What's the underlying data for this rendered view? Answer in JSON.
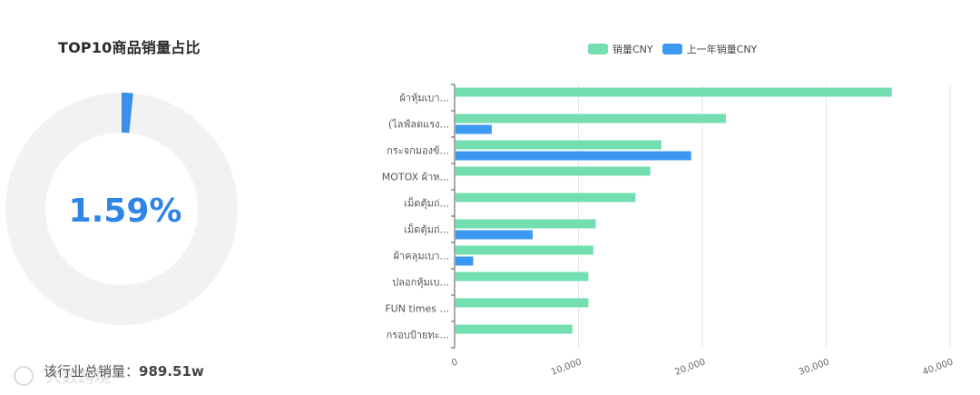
{
  "left_panel": {
    "title": "TOP10商品销量占比",
    "percent_label": "1.59%",
    "percent_value": 0.0159,
    "footer_label": "该行业总销量：",
    "footer_value": "989.51w"
  },
  "colors": {
    "series_current": "#73dfb0",
    "series_previous": "#3b99f2",
    "donut_track": "#f2f2f2",
    "donut_fill": "#3b8fea",
    "percent_text": "#2d85e6"
  },
  "chart_data": [
    {
      "type": "pie",
      "variant": "donut",
      "title": "TOP10商品销量占比",
      "values": [
        1.59,
        98.41
      ],
      "center_label": "1.59%"
    },
    {
      "type": "bar",
      "orientation": "horizontal",
      "categories": [
        "ผ้าหุ้มเบา...",
        "(ไลฟ์ลดแรง...",
        "กระจกมองข้...",
        "MOTOX ผ้าห...",
        "เม็ดตุ้มถ่...",
        "เม็ดตุ้มถ่...",
        "ผ้าคลุมเบา...",
        "ปลอกหุ้มเบ...",
        "FUN times ...",
        "กรอบป้ายทะ..."
      ],
      "series": [
        {
          "name": "销量CNY",
          "values": [
            35300,
            21900,
            16700,
            15800,
            14600,
            11400,
            11200,
            10800,
            10800,
            9500
          ]
        },
        {
          "name": "上一年销量CNY",
          "values": [
            0,
            3000,
            19100,
            0,
            0,
            6300,
            1500,
            0,
            0,
            0
          ]
        }
      ],
      "xlim": [
        0,
        40000
      ],
      "x_ticks": [
        "0",
        "10,000",
        "20,000",
        "30,000",
        "40,000"
      ],
      "grid": true,
      "legend": "top-center"
    }
  ]
}
